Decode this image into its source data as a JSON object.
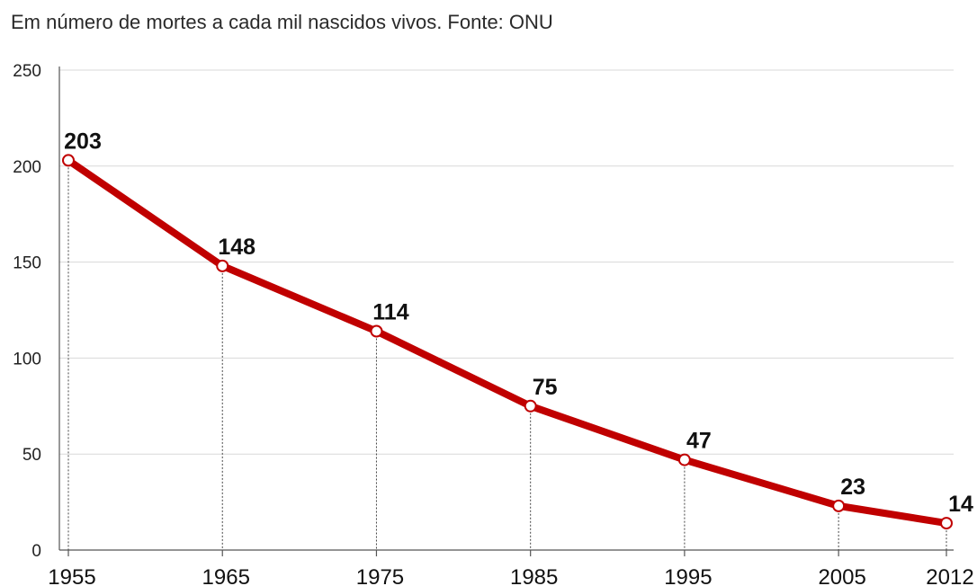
{
  "chart_data": {
    "type": "line",
    "subtitle": "Em número de mortes a cada mil nascidos vivos. Fonte: ONU",
    "x": [
      1955,
      1965,
      1975,
      1985,
      1995,
      2005,
      2012
    ],
    "xtick_labels": [
      "1955",
      "1965",
      "1975",
      "1985",
      "1995",
      "2005",
      "2012"
    ],
    "series": [
      {
        "values": [
          203,
          148,
          114,
          75,
          47,
          23,
          14
        ],
        "color": "#c00000"
      }
    ],
    "ylim": [
      0,
      250
    ],
    "yticks": [
      0,
      50,
      100,
      150,
      200,
      250
    ],
    "grid": true,
    "marker_fill": "#ffffff"
  }
}
